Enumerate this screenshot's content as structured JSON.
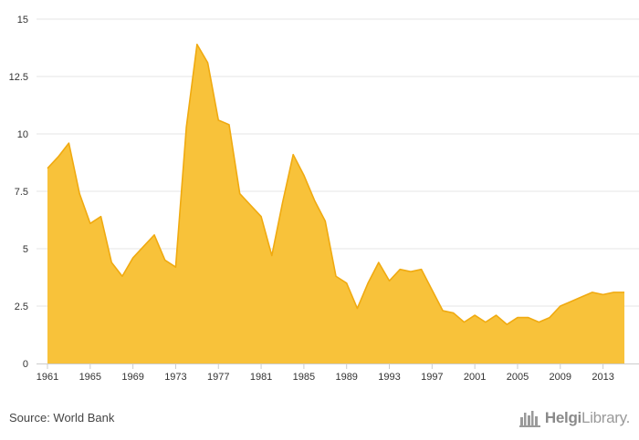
{
  "source_text": "Source: World Bank",
  "brand": {
    "name": "HelgiLibrary",
    "bold_part": "Helgi",
    "light_part": "Library.",
    "logo_icon": "city-skyline-icon"
  },
  "colors": {
    "area_fill": "#f8c23a",
    "area_line": "#f0aa10",
    "grid": "#e6e6e6",
    "axis": "#cccccc",
    "text": "#333333"
  },
  "chart_data": {
    "type": "area",
    "title": "",
    "xlabel": "",
    "ylabel": "",
    "ylim": [
      0,
      15
    ],
    "xlim": [
      1961,
      2015
    ],
    "grid": true,
    "legend": "none",
    "y_ticks": [
      0,
      2.5,
      5,
      7.5,
      10,
      12.5,
      15
    ],
    "y_tick_labels": [
      "0",
      "2.5",
      "5",
      "7.5",
      "10",
      "12.5",
      "15"
    ],
    "x_ticks": [
      1961,
      1965,
      1969,
      1973,
      1977,
      1981,
      1985,
      1989,
      1993,
      1997,
      2001,
      2005,
      2009,
      2013
    ],
    "x": [
      1961,
      1962,
      1963,
      1964,
      1965,
      1966,
      1967,
      1968,
      1969,
      1970,
      1971,
      1972,
      1973,
      1974,
      1975,
      1976,
      1977,
      1978,
      1979,
      1980,
      1981,
      1982,
      1983,
      1984,
      1985,
      1986,
      1987,
      1988,
      1989,
      1990,
      1991,
      1992,
      1993,
      1994,
      1995,
      1996,
      1997,
      1998,
      1999,
      2000,
      2001,
      2002,
      2003,
      2004,
      2005,
      2006,
      2007,
      2008,
      2009,
      2010,
      2011,
      2012,
      2013,
      2014,
      2015
    ],
    "values": [
      8.5,
      9.0,
      9.6,
      7.4,
      6.1,
      6.4,
      4.4,
      3.8,
      4.6,
      5.1,
      5.6,
      4.5,
      4.2,
      10.3,
      13.9,
      13.1,
      10.6,
      10.4,
      7.4,
      6.9,
      6.4,
      4.7,
      7.0,
      9.1,
      8.2,
      7.1,
      6.2,
      3.8,
      3.5,
      2.4,
      3.5,
      4.4,
      3.6,
      4.1,
      4.0,
      4.1,
      3.2,
      2.3,
      2.2,
      1.8,
      2.1,
      1.8,
      2.1,
      1.7,
      2.0,
      2.0,
      1.8,
      2.0,
      2.5,
      2.7,
      2.9,
      3.1,
      3.0,
      3.1,
      3.1
    ]
  }
}
